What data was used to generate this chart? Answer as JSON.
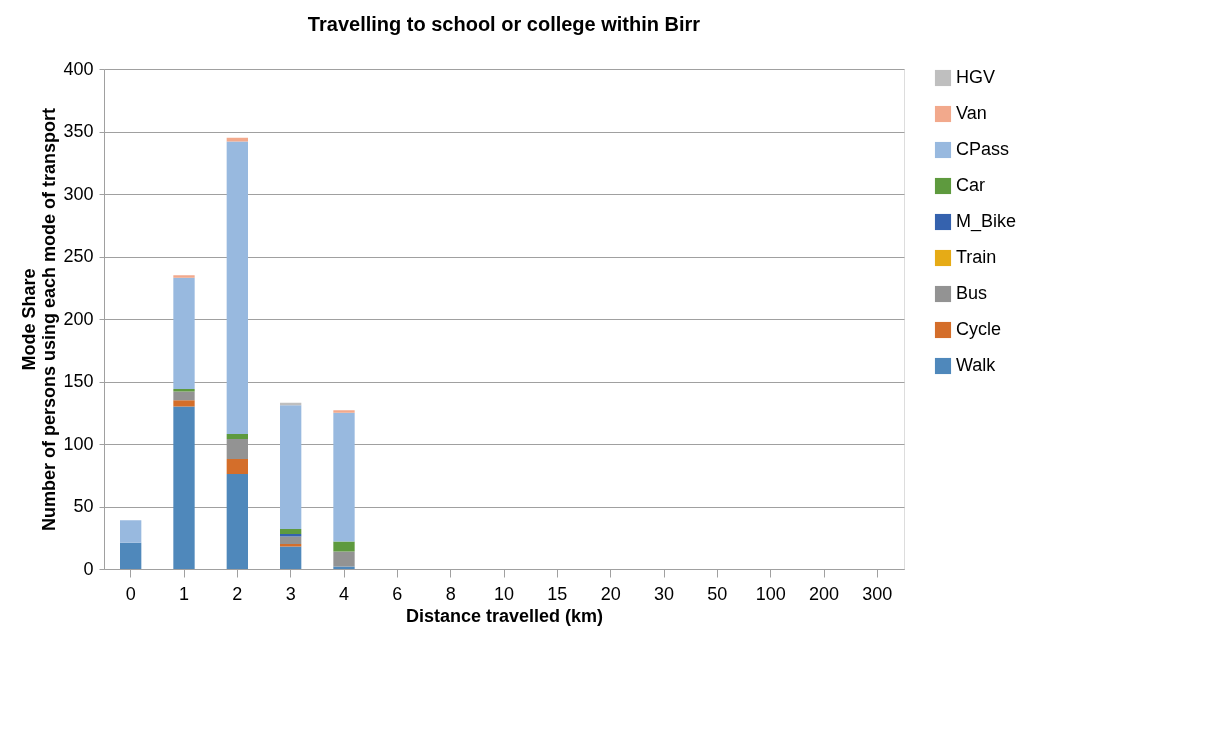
{
  "chart_data": {
    "type": "bar",
    "title": "Travelling to school or college within Birr",
    "xlabel": "Distance travelled (km)",
    "ylabel": "Mode Share\nNumber of persons using each mode of transport",
    "categories": [
      "0",
      "1",
      "2",
      "3",
      "4",
      "6",
      "8",
      "10",
      "15",
      "20",
      "30",
      "50",
      "100",
      "200",
      "300"
    ],
    "stacked": true,
    "ylim": [
      0,
      400
    ],
    "yticks": [
      0,
      50,
      100,
      150,
      200,
      250,
      300,
      350,
      400
    ],
    "grid": "y",
    "legend": "right",
    "series": [
      {
        "name": "Walk",
        "color": "#4f88bb",
        "values": [
          21,
          130,
          76,
          18,
          2,
          0,
          0,
          0,
          0,
          0,
          0,
          0,
          0,
          0,
          0
        ]
      },
      {
        "name": "Cycle",
        "color": "#d46e2a",
        "values": [
          0,
          5,
          12,
          2,
          0,
          0,
          0,
          0,
          0,
          0,
          0,
          0,
          0,
          0,
          0
        ]
      },
      {
        "name": "Bus",
        "color": "#939393",
        "values": [
          0,
          7,
          16,
          6,
          12,
          0,
          0,
          0,
          0,
          0,
          0,
          0,
          0,
          0,
          0
        ]
      },
      {
        "name": "Train",
        "color": "#e6ab16",
        "values": [
          0,
          0,
          0,
          0,
          0,
          0,
          0,
          0,
          0,
          0,
          0,
          0,
          0,
          0,
          0
        ]
      },
      {
        "name": "M_Bike",
        "color": "#3562ae",
        "values": [
          0,
          0,
          0,
          2,
          0,
          0,
          0,
          0,
          0,
          0,
          0,
          0,
          0,
          0,
          0
        ]
      },
      {
        "name": "Car",
        "color": "#5e9a3e",
        "values": [
          0,
          2,
          4,
          4,
          8,
          0,
          0,
          0,
          0,
          0,
          0,
          0,
          0,
          0,
          0
        ]
      },
      {
        "name": "CPass",
        "color": "#98b9df",
        "values": [
          18,
          89,
          234,
          99,
          103,
          0,
          0,
          0,
          0,
          0,
          0,
          0,
          0,
          0,
          0
        ]
      },
      {
        "name": "Van",
        "color": "#f2a98c",
        "values": [
          0,
          2,
          3,
          0,
          2,
          0,
          0,
          0,
          0,
          0,
          0,
          0,
          0,
          0,
          0
        ]
      },
      {
        "name": "HGV",
        "color": "#bfbfbf",
        "values": [
          0,
          0,
          0,
          2,
          0,
          0,
          0,
          0,
          0,
          0,
          0,
          0,
          0,
          0,
          0
        ]
      }
    ]
  }
}
